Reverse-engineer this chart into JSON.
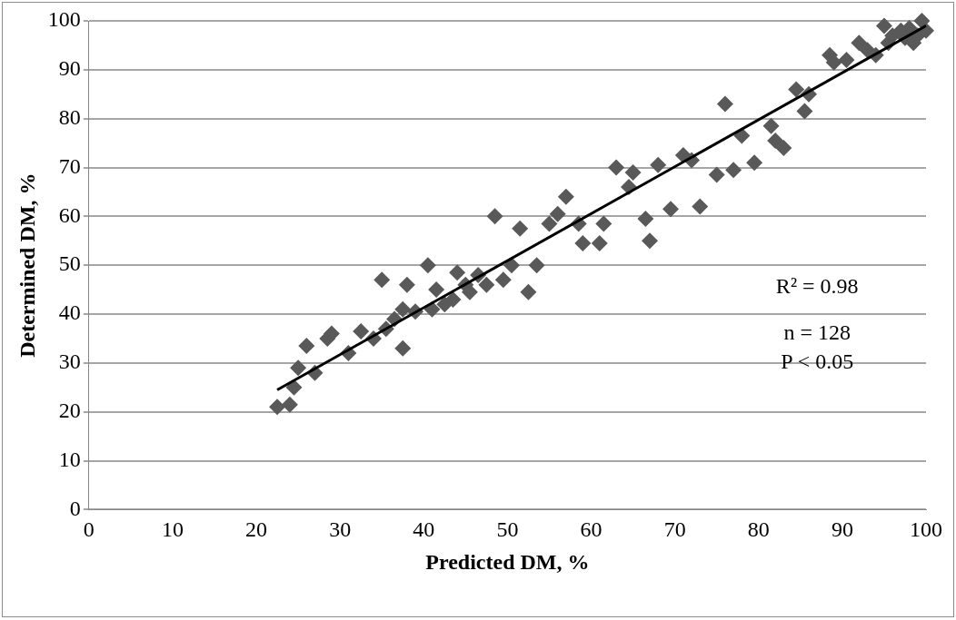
{
  "chart_data": {
    "type": "scatter",
    "xlabel": "Predicted DM, %",
    "ylabel": "Determined DM, %",
    "xlim": [
      0,
      100
    ],
    "xticks": [
      0,
      10,
      20,
      30,
      40,
      50,
      60,
      70,
      80,
      90,
      100
    ],
    "ylim": [
      0,
      100
    ],
    "yticks": [
      0,
      10,
      20,
      30,
      40,
      50,
      60,
      70,
      80,
      90,
      100
    ],
    "grid": "y",
    "legend": false,
    "marker": "diamond",
    "annotations": [
      "R² = 0.98",
      "n = 128",
      "P < 0.05"
    ],
    "series": [
      {
        "color": "#595959",
        "x": [
          22.5,
          24,
          24.5,
          25,
          26,
          27,
          28.5,
          29,
          31,
          32.5,
          34,
          35,
          35.5,
          36.5,
          37.5,
          37.5,
          38,
          39,
          40.5,
          41,
          41.5,
          42.5,
          43.5,
          44,
          45,
          45.5,
          46.5,
          47.5,
          48.5,
          49.5,
          50.5,
          51.5,
          52.5,
          53.5,
          55,
          56,
          57,
          58.5,
          59,
          61,
          61.5,
          63,
          64.5,
          65,
          66.5,
          67,
          68,
          69.5,
          71,
          72,
          73,
          75,
          76,
          77,
          78,
          79.5,
          81.5,
          82,
          83,
          84.5,
          85.5,
          86,
          88.5,
          89,
          90.5,
          92,
          93,
          94,
          95,
          95.5,
          96,
          97,
          97.5,
          98,
          98.5,
          99,
          99.5,
          100
        ],
        "values": [
          21,
          21.5,
          25,
          29,
          33.5,
          28,
          35,
          36,
          32,
          36.5,
          35,
          47,
          37,
          39,
          33,
          41,
          46,
          40.5,
          50,
          41,
          45,
          42,
          43,
          48.5,
          46,
          44.5,
          48,
          46,
          60,
          47,
          50,
          57.5,
          44.5,
          50,
          58.5,
          60.5,
          64,
          58.5,
          54.5,
          54.5,
          58.5,
          70,
          66,
          69,
          59.5,
          55,
          70.5,
          61.5,
          72.5,
          71.5,
          62,
          68.5,
          83,
          69.5,
          76.5,
          71,
          78.5,
          75.5,
          74,
          86,
          81.5,
          85,
          93,
          91.5,
          92,
          95.5,
          94,
          93,
          99,
          95.5,
          97,
          98,
          96.5,
          98.5,
          95.5,
          97,
          100,
          98
        ]
      },
      {
        "type": "line",
        "color": "#000000",
        "x": [
          22.5,
          100
        ],
        "values": [
          24.5,
          99
        ],
        "marker": "none",
        "line_style": "solid"
      }
    ]
  }
}
